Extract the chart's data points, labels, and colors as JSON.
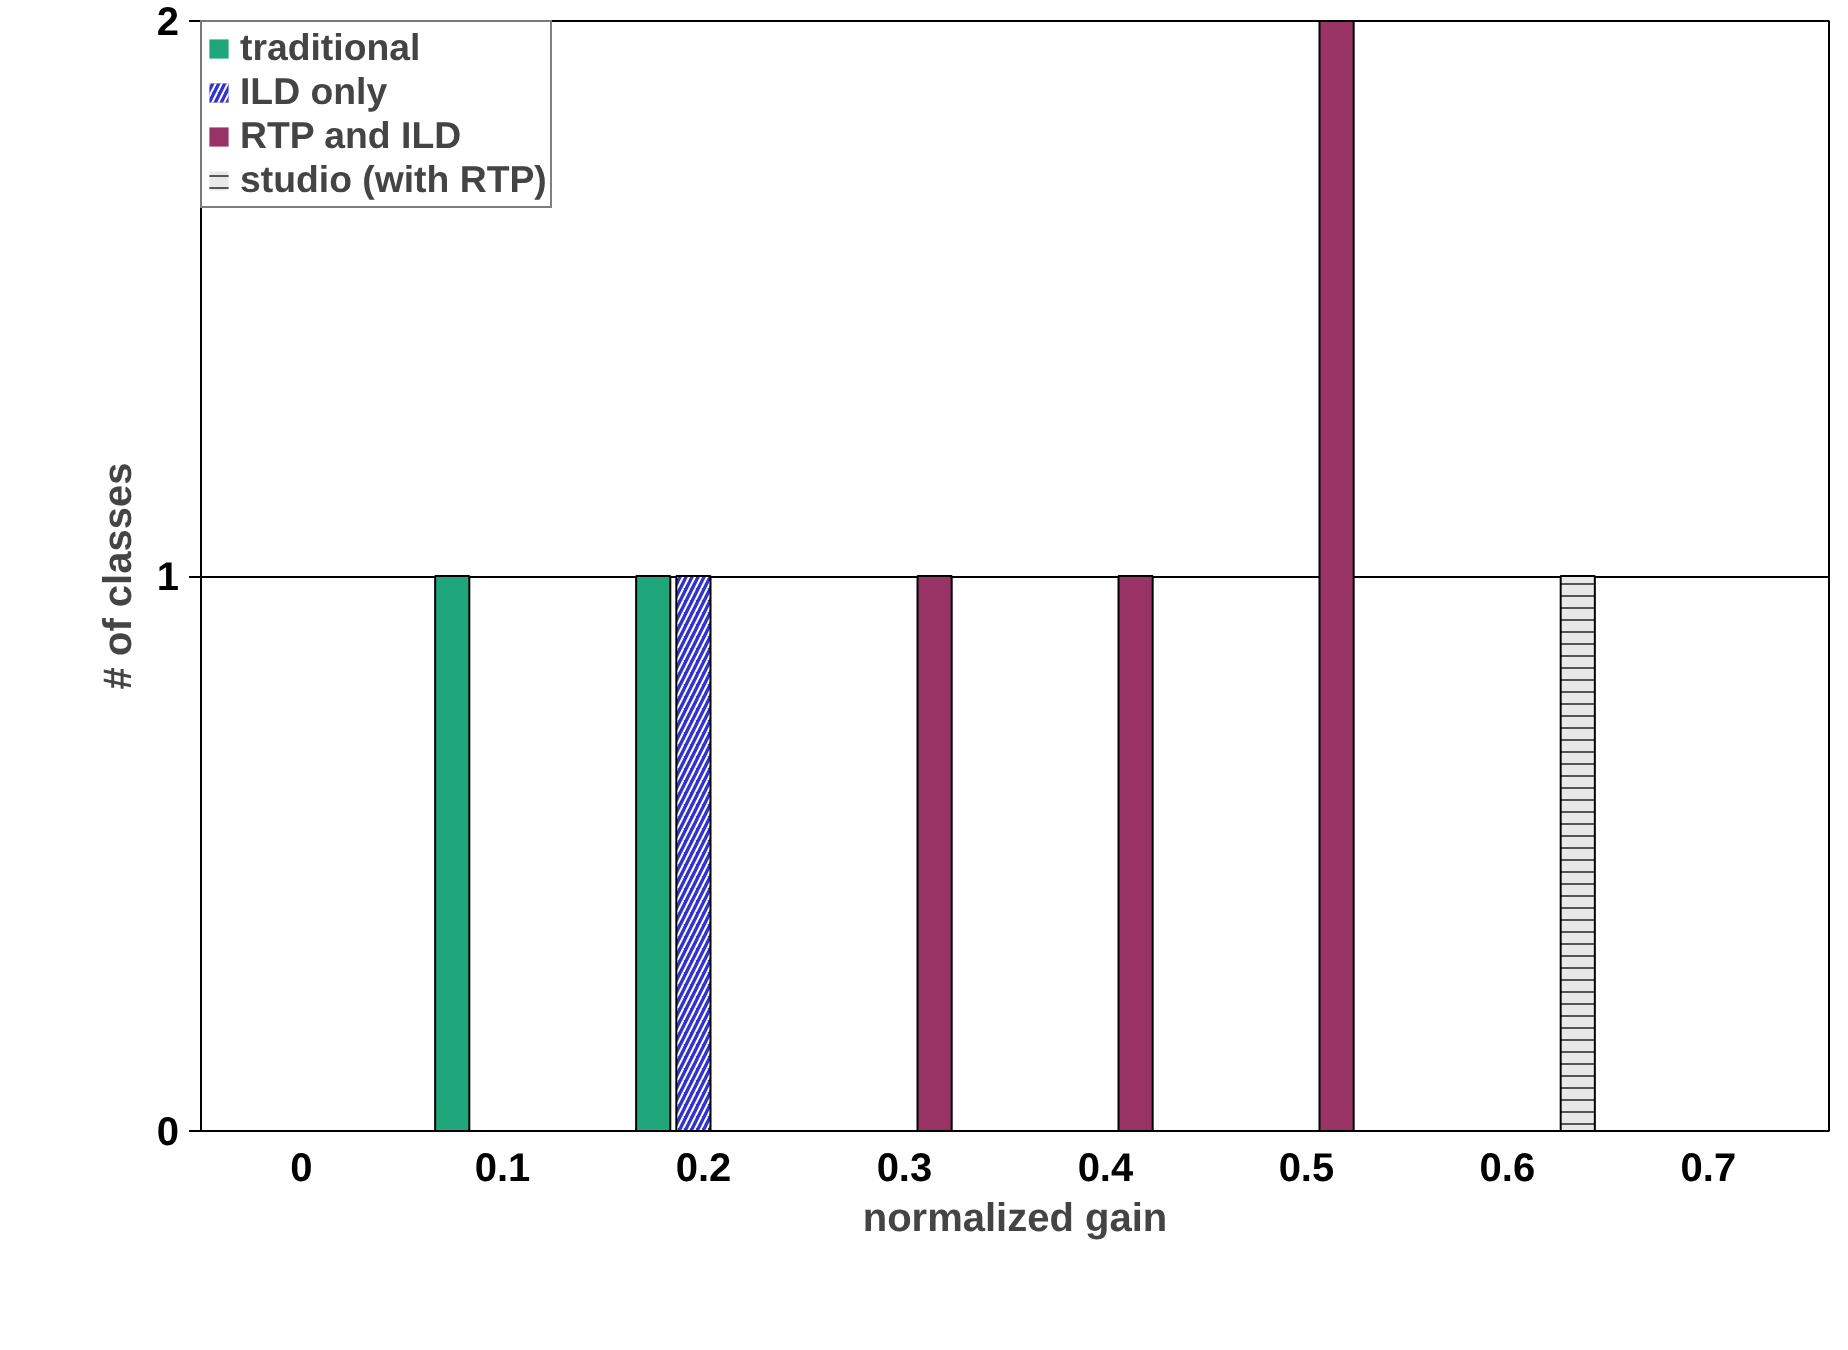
{
  "chart_data": {
    "type": "bar",
    "xlabel": "normalized gain",
    "ylabel": "# of classes",
    "categories": [
      "0",
      "0.1",
      "0.2",
      "0.3",
      "0.4",
      "0.5",
      "0.6",
      "0.7"
    ],
    "series": [
      {
        "name": "traditional",
        "color": "#1fa67a",
        "values": [
          0,
          1,
          1,
          0,
          0,
          0,
          0,
          0
        ]
      },
      {
        "name": "ILD only",
        "color": "#3333cc",
        "values": [
          0,
          0,
          1,
          0,
          0,
          0,
          0,
          0
        ]
      },
      {
        "name": "RTP and ILD",
        "color": "#993366",
        "values": [
          0,
          0,
          0,
          1,
          1,
          2,
          0,
          0
        ]
      },
      {
        "name": "studio (with RTP)",
        "color": "#e8e8e8",
        "values": [
          0,
          0,
          0,
          0,
          0,
          0,
          1,
          0
        ]
      }
    ],
    "ylim": [
      0,
      2
    ],
    "yticks": [
      0,
      1,
      2
    ],
    "grid": "y",
    "legend": "top left"
  }
}
